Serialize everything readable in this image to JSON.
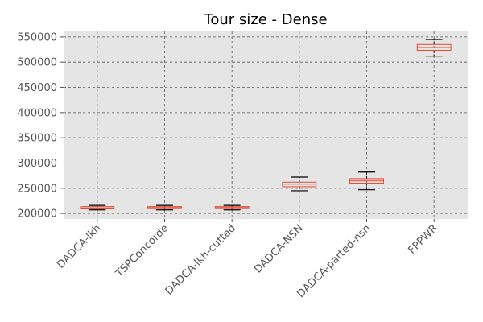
{
  "chart_data": {
    "type": "box",
    "title": "Tour size - Dense",
    "xlabel": "",
    "ylabel": "",
    "categories": [
      "DADCA-lkh",
      "TSPConcorde",
      "DADCA-lkh-cutted",
      "DADCA-NSN",
      "DADCA-parted-nsn",
      "FPPWR"
    ],
    "y_ticks": [
      200000,
      250000,
      300000,
      350000,
      400000,
      450000,
      500000,
      550000
    ],
    "ylim": [
      189000,
      561000
    ],
    "grid": true,
    "boxes": [
      {
        "label": "DADCA-lkh",
        "whisker_low": 207000,
        "q1": 209000,
        "median": 211000,
        "q3": 213500,
        "whisker_high": 216000
      },
      {
        "label": "TSPConcorde",
        "whisker_low": 207000,
        "q1": 209500,
        "median": 211500,
        "q3": 213500,
        "whisker_high": 216000
      },
      {
        "label": "DADCA-lkh-cutted",
        "whisker_low": 207000,
        "q1": 209500,
        "median": 211500,
        "q3": 213500,
        "whisker_high": 216000
      },
      {
        "label": "DADCA-NSN",
        "whisker_low": 245000,
        "q1": 253000,
        "median": 258000,
        "q3": 262000,
        "whisker_high": 272000
      },
      {
        "label": "DADCA-parted-nsn",
        "whisker_low": 247000,
        "q1": 260000,
        "median": 264500,
        "q3": 269000,
        "whisker_high": 282000
      },
      {
        "label": "FPPWR",
        "whisker_low": 512000,
        "q1": 523500,
        "median": 529000,
        "q3": 535000,
        "whisker_high": 545000
      }
    ],
    "colors": {
      "plot_background": "#e5e5e5",
      "grid": "#555555",
      "box": "#e24a33",
      "whisker": "#000000",
      "median": "#e24a33"
    }
  }
}
